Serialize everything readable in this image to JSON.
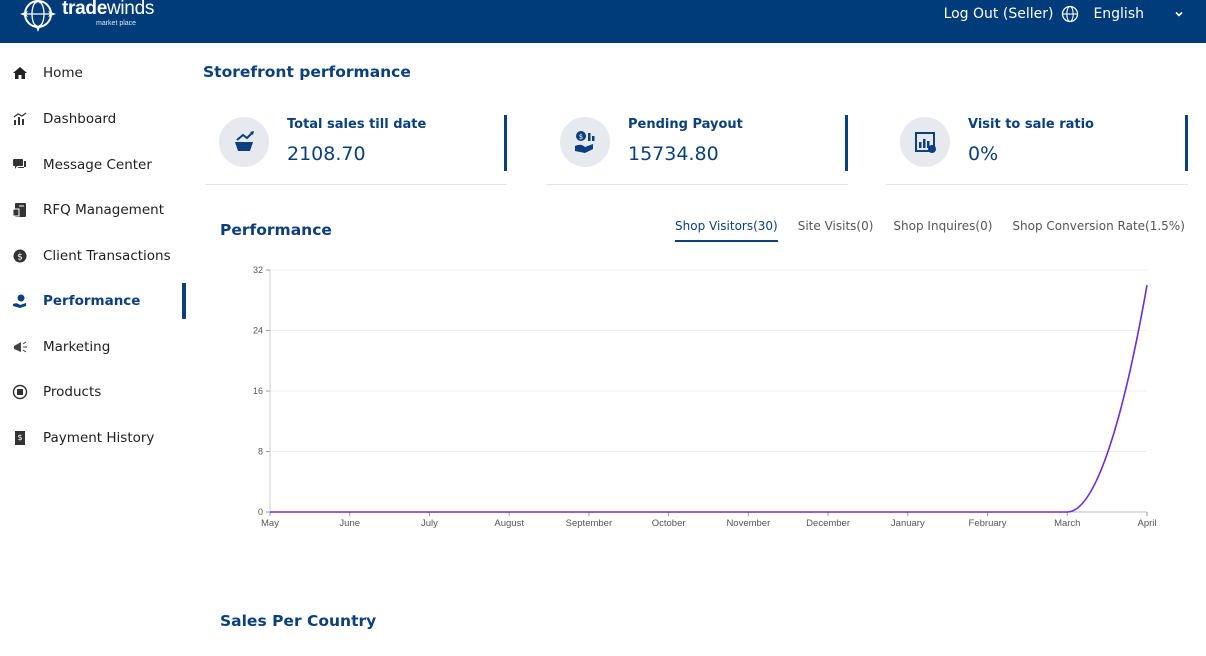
{
  "header": {
    "logo_word_bold": "trade",
    "logo_word_light": "winds",
    "logo_sub": "market place",
    "logout": "Log Out (Seller)",
    "language": "English",
    "icons": [
      "globe-icon",
      "chevron-down-icon"
    ]
  },
  "sidebar": {
    "items": [
      {
        "label": "Home",
        "icon": "home-icon"
      },
      {
        "label": "Dashboard",
        "icon": "dashboard-icon"
      },
      {
        "label": "Message Center",
        "icon": "message-icon"
      },
      {
        "label": "RFQ Management",
        "icon": "rfq-icon"
      },
      {
        "label": "Client Transactions",
        "icon": "transactions-icon"
      },
      {
        "label": "Performance",
        "icon": "performance-icon",
        "active": true
      },
      {
        "label": "Marketing",
        "icon": "megaphone-icon"
      },
      {
        "label": "Products",
        "icon": "products-icon"
      },
      {
        "label": "Payment History",
        "icon": "receipt-icon"
      }
    ]
  },
  "main": {
    "storefront_title": "Storefront performance",
    "stats": [
      {
        "title": "Total sales till date",
        "value": "2108.70",
        "icon": "sales-cart-icon"
      },
      {
        "title": "Pending Payout",
        "value": "15734.80",
        "icon": "payout-hand-icon"
      },
      {
        "title": "Visit to sale ratio",
        "value": "0%",
        "icon": "ratio-chart-icon"
      }
    ],
    "performance_title": "Performance",
    "tabs": [
      {
        "label": "Shop Visitors(30)",
        "active": true
      },
      {
        "label": "Site Visits(0)"
      },
      {
        "label": "Shop Inquires(0)"
      },
      {
        "label": "Shop Conversion Rate(1.5%)"
      }
    ],
    "sales_title": "Sales Per Country"
  },
  "colors": {
    "brand": "#003b7a",
    "accent": "#0b3f7d",
    "line": "#6a2bd9"
  },
  "chart_data": {
    "type": "line",
    "categories": [
      "May",
      "June",
      "July",
      "August",
      "September",
      "October",
      "November",
      "December",
      "January",
      "February",
      "March",
      "April"
    ],
    "series": [
      {
        "values": [
          0,
          0,
          0,
          0,
          0,
          0,
          0,
          0,
          0,
          0,
          0,
          30
        ]
      }
    ],
    "ylim": [
      0,
      32
    ],
    "yticks": [
      0,
      8,
      16,
      24,
      32
    ],
    "grid": true,
    "legend": "none"
  }
}
